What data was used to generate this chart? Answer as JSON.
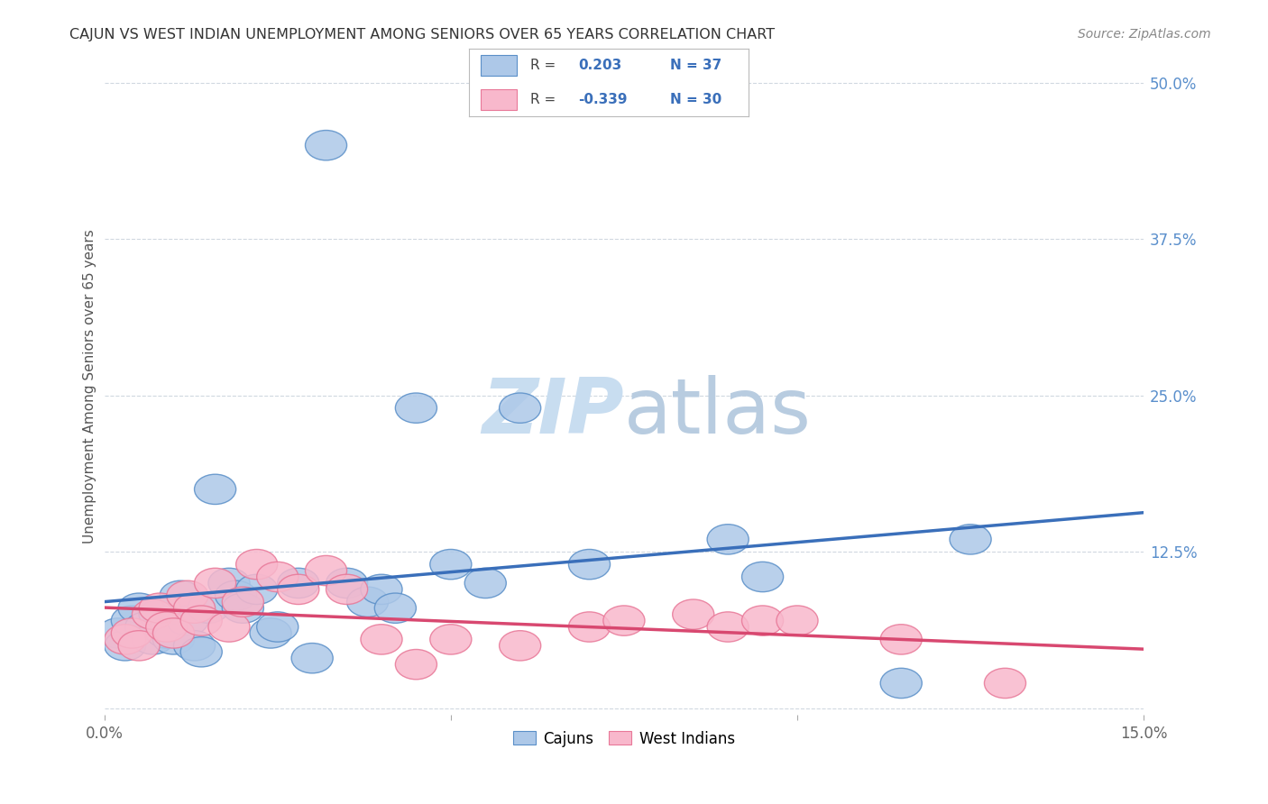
{
  "title": "CAJUN VS WEST INDIAN UNEMPLOYMENT AMONG SENIORS OVER 65 YEARS CORRELATION CHART",
  "source": "Source: ZipAtlas.com",
  "ylabel": "Unemployment Among Seniors over 65 years",
  "xlim": [
    0.0,
    0.15
  ],
  "ylim": [
    -0.005,
    0.52
  ],
  "cajun_R": 0.203,
  "cajun_N": 37,
  "westindian_R": -0.339,
  "westindian_N": 30,
  "cajun_color": "#adc8e8",
  "cajun_edge_color": "#5a8fc8",
  "cajun_line_color": "#3a6fba",
  "westindian_color": "#f8b8cc",
  "westindian_edge_color": "#e87898",
  "westindian_line_color": "#d84870",
  "grid_color": "#d0d8e0",
  "ytick_right_values": [
    0.0,
    0.125,
    0.25,
    0.375,
    0.5
  ],
  "ytick_right_labels": [
    "",
    "12.5%",
    "25.0%",
    "37.5%",
    "50.0%"
  ],
  "cajun_x": [
    0.002,
    0.003,
    0.004,
    0.005,
    0.006,
    0.007,
    0.008,
    0.009,
    0.01,
    0.011,
    0.012,
    0.013,
    0.014,
    0.015,
    0.016,
    0.018,
    0.019,
    0.02,
    0.022,
    0.024,
    0.025,
    0.028,
    0.03,
    0.032,
    0.035,
    0.038,
    0.04,
    0.042,
    0.045,
    0.05,
    0.055,
    0.06,
    0.07,
    0.09,
    0.095,
    0.115,
    0.125
  ],
  "cajun_y": [
    0.06,
    0.05,
    0.07,
    0.08,
    0.065,
    0.055,
    0.075,
    0.06,
    0.055,
    0.09,
    0.07,
    0.05,
    0.045,
    0.08,
    0.175,
    0.1,
    0.09,
    0.08,
    0.095,
    0.06,
    0.065,
    0.1,
    0.04,
    0.45,
    0.1,
    0.085,
    0.095,
    0.08,
    0.24,
    0.115,
    0.1,
    0.24,
    0.115,
    0.135,
    0.105,
    0.02,
    0.135
  ],
  "westindian_x": [
    0.003,
    0.004,
    0.005,
    0.007,
    0.008,
    0.009,
    0.01,
    0.012,
    0.013,
    0.014,
    0.016,
    0.018,
    0.02,
    0.022,
    0.025,
    0.028,
    0.032,
    0.035,
    0.04,
    0.045,
    0.05,
    0.06,
    0.07,
    0.075,
    0.085,
    0.09,
    0.095,
    0.1,
    0.115,
    0.13
  ],
  "westindian_y": [
    0.055,
    0.06,
    0.05,
    0.075,
    0.08,
    0.065,
    0.06,
    0.09,
    0.08,
    0.07,
    0.1,
    0.065,
    0.085,
    0.115,
    0.105,
    0.095,
    0.11,
    0.095,
    0.055,
    0.035,
    0.055,
    0.05,
    0.065,
    0.07,
    0.075,
    0.065,
    0.07,
    0.07,
    0.055,
    0.02
  ]
}
